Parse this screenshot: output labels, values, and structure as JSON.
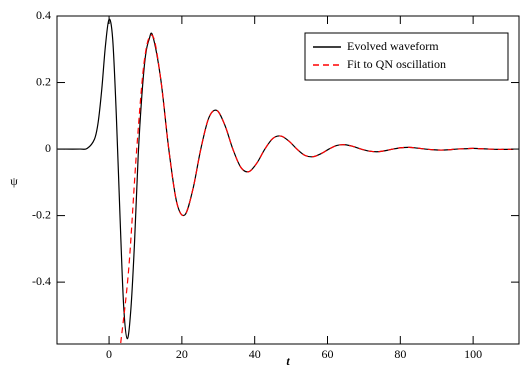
{
  "chart_data": {
    "type": "line",
    "x_label": "t",
    "y_label": "ψ",
    "xlim": [
      -14.3,
      112.6
    ],
    "ylim": [
      -0.586,
      0.4
    ],
    "xticks": [
      0,
      20,
      40,
      60,
      80,
      100
    ],
    "yticks": [
      -0.4,
      -0.2,
      0,
      0.2,
      0.4
    ],
    "legend": "upper right",
    "series": [
      {
        "name": "Evolved waveform",
        "color": "#000000",
        "linestyle": "solid",
        "x": [
          -14,
          -8,
          -6,
          -4,
          -3,
          -2,
          -1,
          0,
          1,
          2,
          3,
          4,
          5,
          6,
          7,
          8,
          9,
          10,
          11,
          12,
          14.2,
          16.4,
          18.6,
          20.8,
          23,
          25.2,
          27.4,
          29.6,
          31.8,
          34,
          36.2,
          38.4,
          40.6,
          42.8,
          45,
          47.2,
          49.4,
          51.6,
          53.8,
          56,
          58.2,
          60.4,
          62.6,
          64.8,
          67,
          69.2,
          71.4,
          73.6,
          75.8,
          78,
          80.2,
          82.4,
          84.6,
          86.8,
          89,
          91.2,
          93.4,
          95.6,
          97.8,
          100,
          102.2,
          104.4,
          106.6,
          108.8,
          111
        ],
        "values": [
          0,
          0,
          0.002,
          0.03,
          0.08,
          0.18,
          0.31,
          0.39,
          0.33,
          0.1,
          -0.2,
          -0.47,
          -0.57,
          -0.48,
          -0.28,
          -0.02,
          0.16,
          0.28,
          0.33,
          0.34,
          0.21,
          0,
          -0.161,
          -0.198,
          -0.122,
          0,
          0.094,
          0.116,
          0.072,
          0,
          -0.055,
          -0.068,
          -0.042,
          0,
          0.032,
          0.039,
          0.024,
          0,
          -0.019,
          -0.023,
          -0.014,
          0,
          0.011,
          0.013,
          0.008,
          0,
          -0.006,
          -0.008,
          -0.005,
          0,
          0.004,
          0.005,
          0.003,
          0,
          -0.002,
          -0.003,
          -0.002,
          0,
          0.001,
          0.002,
          0.001,
          0,
          -0.001,
          -0.001,
          -0.001
        ]
      },
      {
        "name": "Fit to QN oscillation",
        "color": "#ff0000",
        "linestyle": "dashed",
        "x": [
          3.2,
          5.4,
          7.6,
          9.8,
          12,
          14.2,
          16.4,
          18.6,
          20.8,
          23,
          25.2,
          27.4,
          29.6,
          31.8,
          34,
          36.2,
          38.4,
          40.6,
          42.8,
          45,
          47.2,
          49.4,
          51.6,
          53.8,
          56,
          58.2,
          60.4,
          62.6,
          64.8,
          67,
          69.2,
          71.4,
          73.6,
          75.8,
          78,
          80.2,
          82.4,
          84.6,
          86.8,
          89,
          91.2,
          93.4,
          95.6,
          97.8,
          100,
          102.2,
          104.4,
          106.6,
          108.8,
          111
        ],
        "values": [
          -0.583,
          -0.36,
          0,
          0.275,
          0.34,
          0.21,
          0,
          -0.161,
          -0.198,
          -0.122,
          0,
          0.094,
          0.116,
          0.072,
          0,
          -0.055,
          -0.068,
          -0.042,
          0,
          0.032,
          0.039,
          0.024,
          0,
          -0.019,
          -0.023,
          -0.014,
          0,
          0.011,
          0.013,
          0.008,
          0,
          -0.006,
          -0.008,
          -0.005,
          0,
          0.004,
          0.005,
          0.003,
          0,
          -0.002,
          -0.003,
          -0.002,
          0,
          0.001,
          0.002,
          0.001,
          0,
          -0.001,
          -0.001,
          -0.001
        ]
      }
    ]
  }
}
